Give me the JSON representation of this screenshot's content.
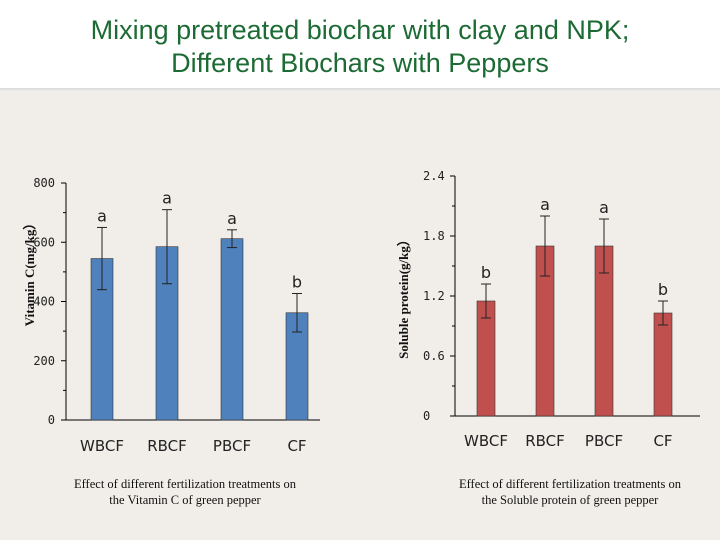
{
  "title": {
    "line1": "Mixing pretreated biochar with  clay and NPK;",
    "line2": "Different Biochars with Peppers"
  },
  "colors": {
    "title": "#1d6b34",
    "left_bars": "#4f81bd",
    "right_bars": "#c0504d",
    "background": "#f1eeea"
  },
  "chart_data": [
    {
      "type": "bar",
      "ylabel": "Vitamin C(mg/kg）",
      "categories": [
        "WBCF",
        "RBCF",
        "PBCF",
        "CF"
      ],
      "values": [
        545,
        585,
        612,
        362
      ],
      "errors": [
        105,
        125,
        30,
        65
      ],
      "letters": [
        "a",
        "a",
        "a",
        "b"
      ],
      "yticks": [
        "0",
        "200",
        "400",
        "600",
        "800"
      ],
      "ylim": [
        0,
        800
      ],
      "legend": "none",
      "grid": false,
      "caption": [
        "Effect of different fertilization treatments on",
        "the Vitamin C of green pepper"
      ]
    },
    {
      "type": "bar",
      "ylabel": "Soluble protein(g/kg）",
      "categories": [
        "WBCF",
        "RBCF",
        "PBCF",
        "CF"
      ],
      "values": [
        1.15,
        1.7,
        1.7,
        1.03
      ],
      "errors": [
        0.17,
        0.3,
        0.27,
        0.12
      ],
      "letters": [
        "b",
        "a",
        "a",
        "b"
      ],
      "yticks": [
        "0",
        "0.6",
        "1.2",
        "1.8",
        "2.4"
      ],
      "ylim": [
        0,
        2.4
      ],
      "legend": "none",
      "grid": false,
      "caption": [
        "Effect of different fertilization treatments on",
        "the Soluble protein of green pepper"
      ]
    }
  ]
}
